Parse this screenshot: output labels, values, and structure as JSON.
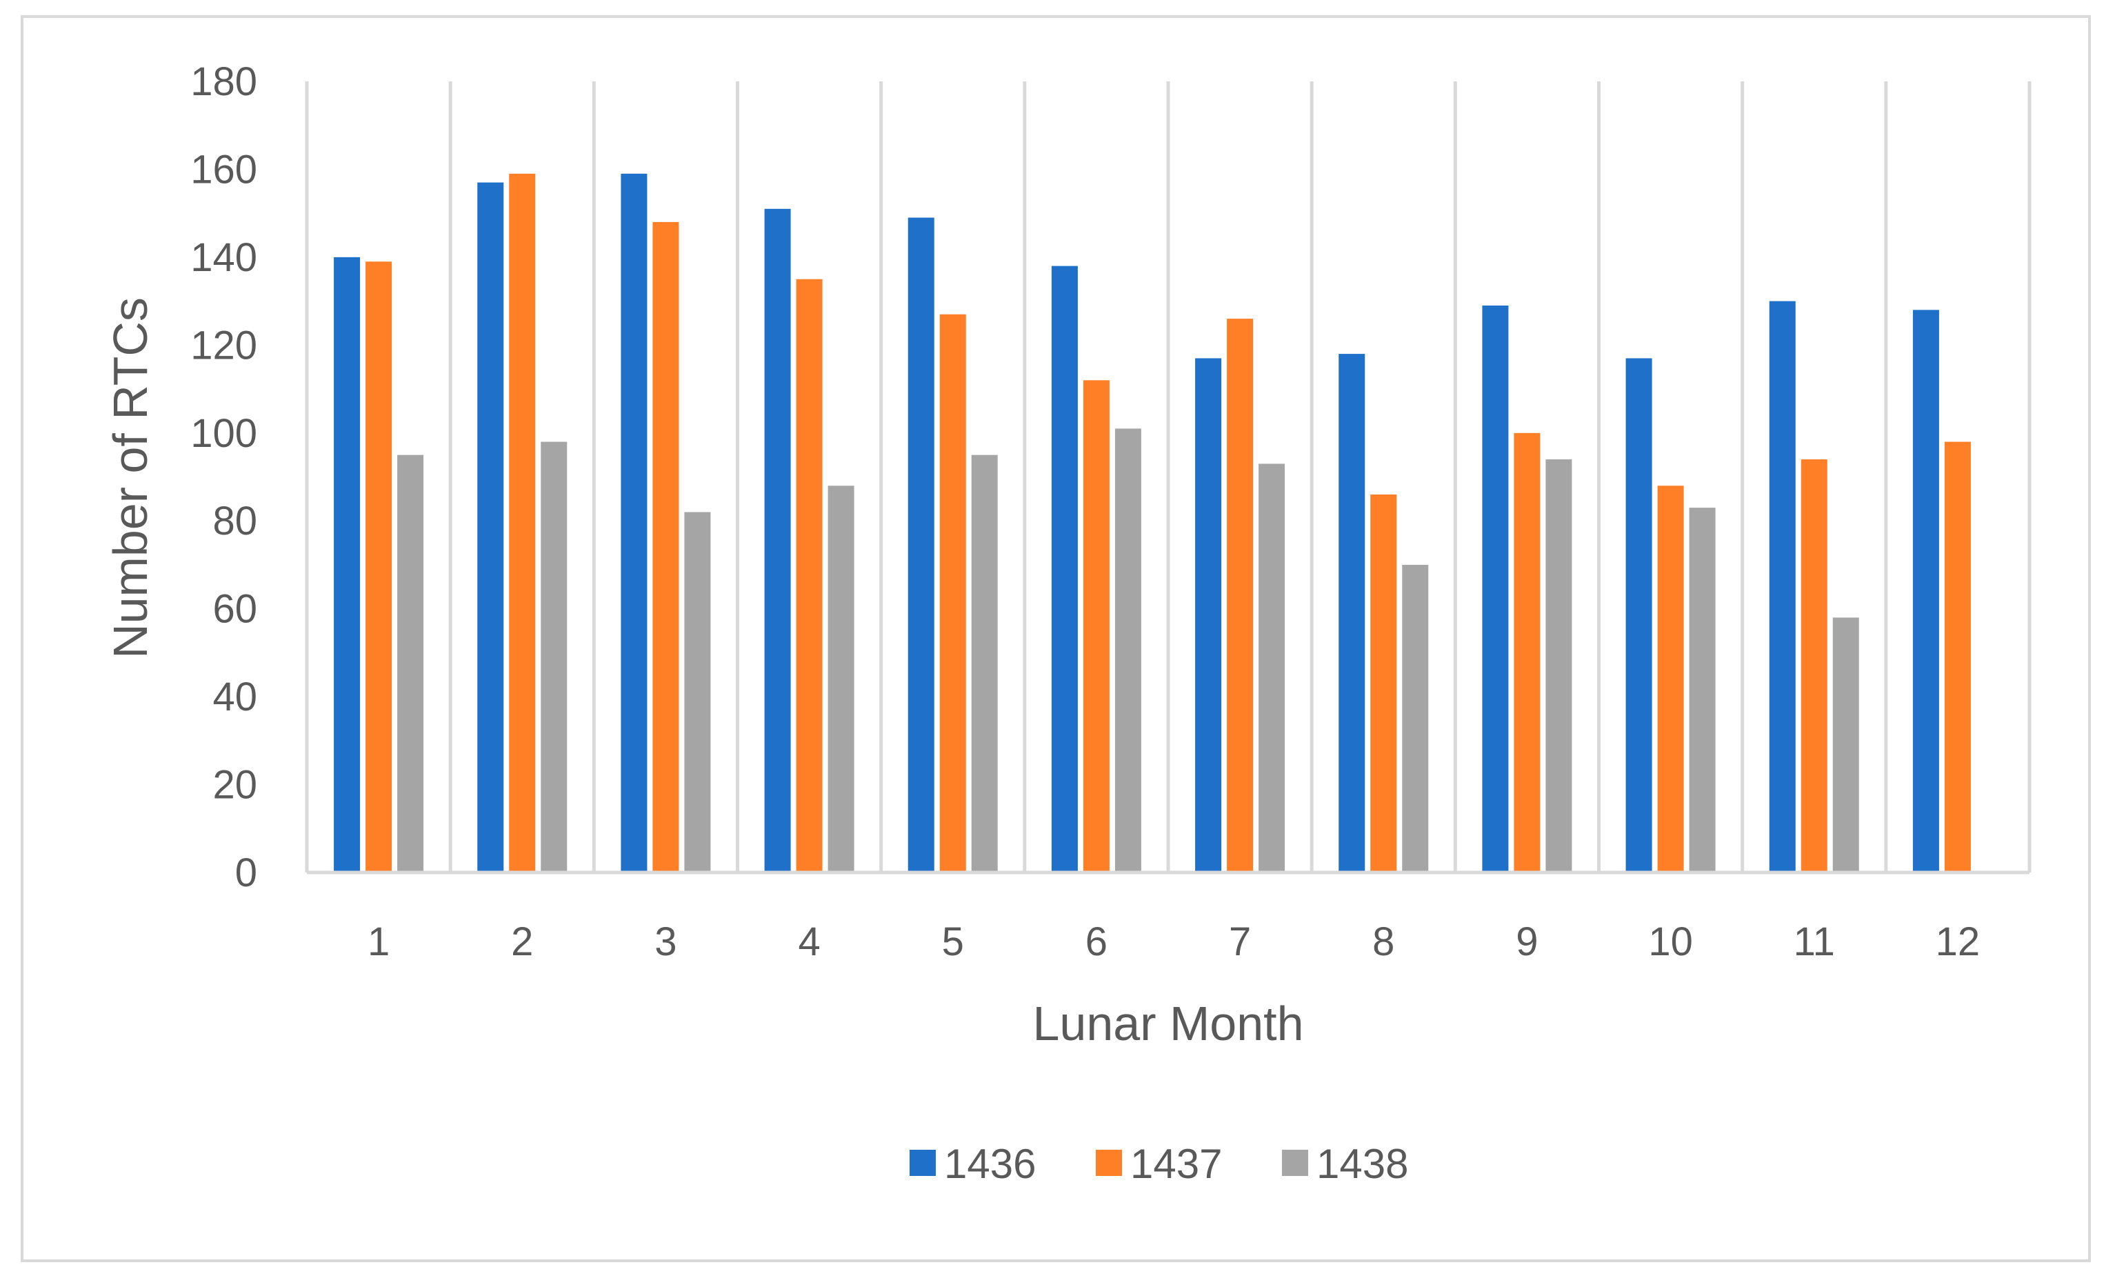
{
  "chart_data": {
    "type": "bar",
    "title": "",
    "xlabel": "Lunar Month",
    "ylabel": "Number of RTCs",
    "categories": [
      "1",
      "2",
      "3",
      "4",
      "5",
      "6",
      "7",
      "8",
      "9",
      "10",
      "11",
      "12"
    ],
    "ylim": [
      0,
      180
    ],
    "yticks": [
      "0",
      "20",
      "40",
      "60",
      "80",
      "100",
      "120",
      "140",
      "160",
      "180"
    ],
    "grid": "vertical category separators",
    "legend_position": "bottom",
    "series": [
      {
        "name": "1436",
        "color": "#1f70c8",
        "values": [
          140,
          157,
          159,
          151,
          149,
          138,
          117,
          118,
          129,
          117,
          130,
          128
        ]
      },
      {
        "name": "1437",
        "color": "#ff7f27",
        "values": [
          139,
          159,
          148,
          135,
          127,
          112,
          126,
          86,
          100,
          88,
          94,
          98
        ]
      },
      {
        "name": "1438",
        "color": "#a5a5a5",
        "values": [
          95,
          98,
          82,
          88,
          95,
          101,
          93,
          70,
          94,
          83,
          58,
          null
        ]
      }
    ]
  }
}
